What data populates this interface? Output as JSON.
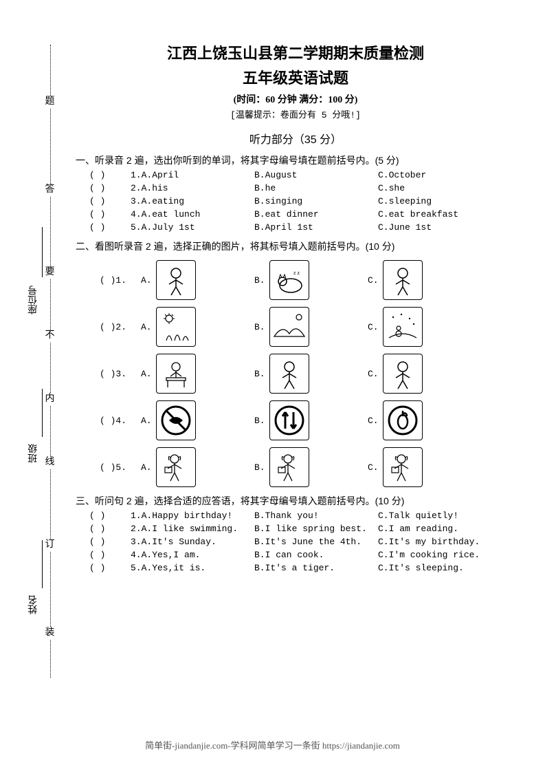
{
  "header": {
    "title_line1": "江西上饶玉山县第二学期期末质量检测",
    "title_line2": "五年级英语试题",
    "timing": "(时间：60 分钟  满分：100 分)",
    "tip": "[温馨提示：卷面分有 5 分哦!]"
  },
  "listening_section": {
    "title": "听力部分（35 分）"
  },
  "q1": {
    "instruction": "一、听录音 2 遍，选出你听到的单词，将其字母编号填在题前括号内。(5 分)",
    "paren_text": "(    )",
    "rows": [
      {
        "num": "1.",
        "a": "A.April",
        "b": "B.August",
        "c": "C.October"
      },
      {
        "num": "2.",
        "a": "A.his",
        "b": "B.he",
        "c": "C.she"
      },
      {
        "num": "3.",
        "a": "A.eating",
        "b": "B.singing",
        "c": "C.sleeping"
      },
      {
        "num": "4.",
        "a": "A.eat lunch",
        "b": "B.eat dinner",
        "c": "C.eat breakfast"
      },
      {
        "num": "5.",
        "a": "A.July 1st",
        "b": "B.April 1st",
        "c": "C.June 1st"
      }
    ]
  },
  "q2": {
    "instruction": "二、看图听录音 2 遍，选择正确的图片，将其标号填入题前括号内。(10 分)",
    "paren_text": "(    )",
    "labels": {
      "a": "A.",
      "b": "B.",
      "c": "C."
    },
    "row_nums": [
      "1.",
      "2.",
      "3.",
      "4.",
      "5."
    ]
  },
  "q3": {
    "instruction": "三、听问句 2 遍，选择合适的应答语，将其字母编号填入题前括号内。(10 分)",
    "paren_text": "(    )",
    "rows": [
      {
        "num": "1.",
        "a": "A.Happy birthday!",
        "b": "B.Thank you!",
        "c": "C.Talk quietly!"
      },
      {
        "num": "2.",
        "a": "A.I like swimming.",
        "b": "B.I like spring best.",
        "c": "C.I am reading."
      },
      {
        "num": "3.",
        "a": "A.It's Sunday.",
        "b": "B.It's June the 4th.",
        "c": "C.It's my birthday."
      },
      {
        "num": "4.",
        "a": "A.Yes,I am.",
        "b": "B.I can cook.",
        "c": "C.I'm cooking rice."
      },
      {
        "num": "5.",
        "a": "A.Yes,it is.",
        "b": "B.It's a tiger.",
        "c": "C.It's sleeping."
      }
    ]
  },
  "binding": {
    "labels": {
      "name": "姓名",
      "class": "班级",
      "seat": "座位号"
    },
    "chars": [
      "装",
      "订",
      "线",
      "内",
      "不",
      "要",
      "答",
      "题"
    ],
    "char_positions_pct": [
      92,
      78,
      65,
      55,
      45,
      35,
      22,
      8
    ],
    "line_color": "#000000"
  },
  "footer": {
    "text": "简单街-jiandanjie.com-学科网简单学习一条街 https://jiandanjie.com"
  },
  "colors": {
    "text": "#000000",
    "background": "#ffffff",
    "footer": "#555555"
  }
}
